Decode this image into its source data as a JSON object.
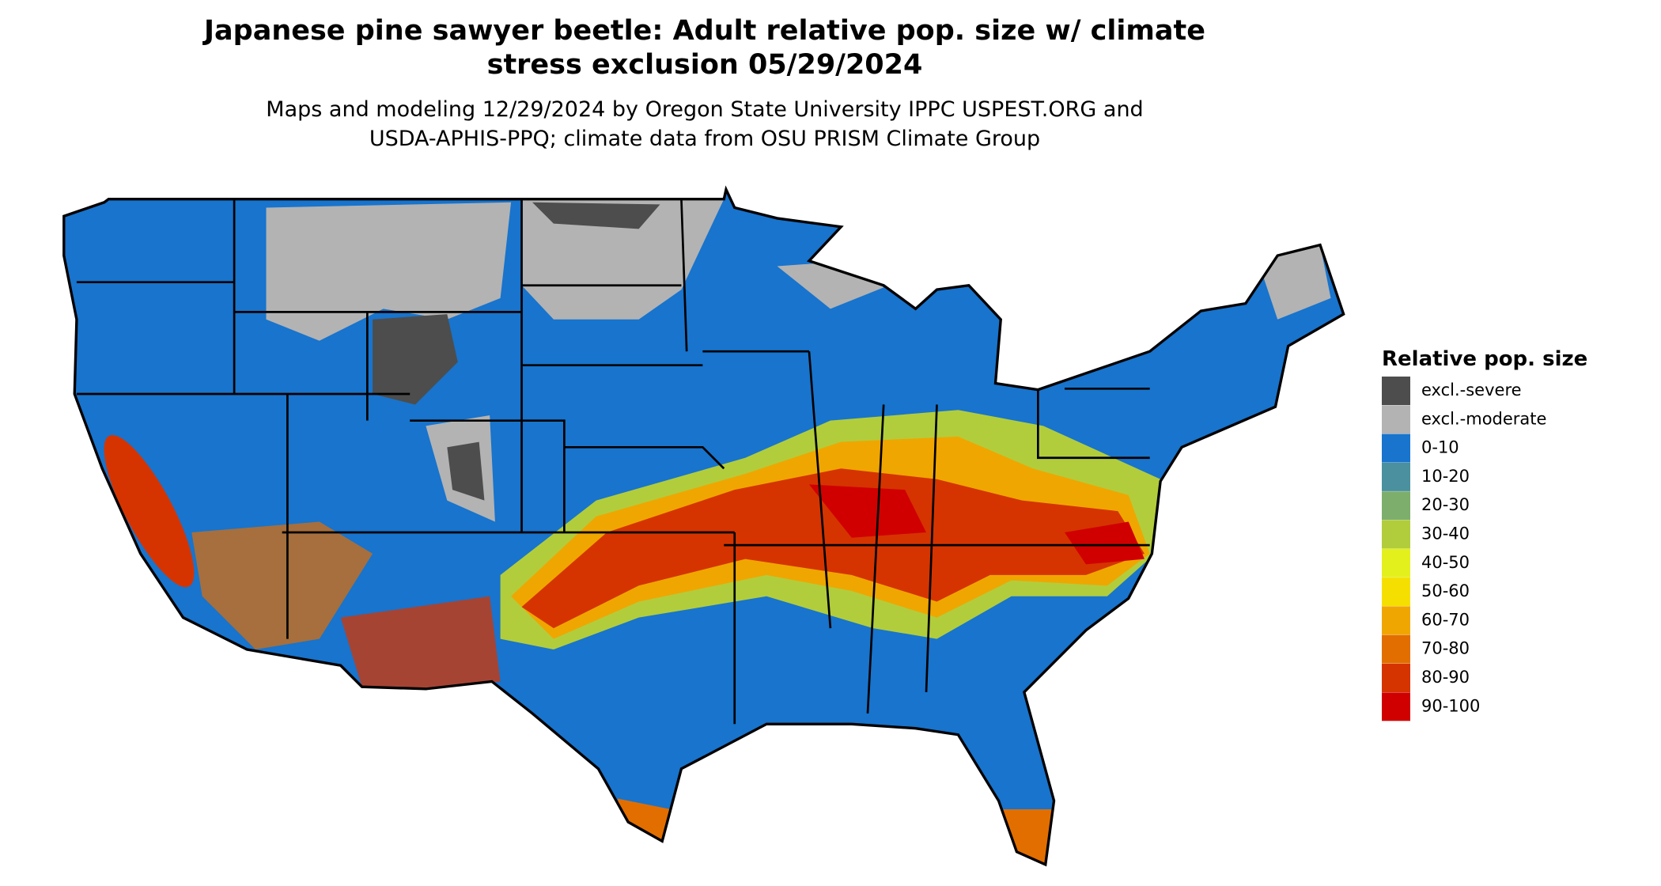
{
  "header": {
    "title_line1": "Japanese pine sawyer beetle: Adult relative pop. size w/ climate",
    "title_line2": "stress exclusion 05/29/2024",
    "subtitle_line1": "Maps and modeling 12/29/2024 by Oregon State University IPPC USPEST.ORG and",
    "subtitle_line2": "USDA-APHIS-PPQ; climate data from OSU PRISM Climate Group"
  },
  "legend": {
    "title": "Relative pop. size",
    "items": [
      {
        "label": "excl.-severe",
        "color": "#4d4d4d"
      },
      {
        "label": "excl.-moderate",
        "color": "#b3b3b3"
      },
      {
        "label": "0-10",
        "color": "#1874cd"
      },
      {
        "label": "10-20",
        "color": "#4a909e"
      },
      {
        "label": "20-30",
        "color": "#7dae6c"
      },
      {
        "label": "30-40",
        "color": "#b2cd3b"
      },
      {
        "label": "40-50",
        "color": "#e3f01c"
      },
      {
        "label": "50-60",
        "color": "#f5df00"
      },
      {
        "label": "60-70",
        "color": "#f0a600"
      },
      {
        "label": "70-80",
        "color": "#e26e00"
      },
      {
        "label": "80-90",
        "color": "#d53400"
      },
      {
        "label": "90-100",
        "color": "#d00000"
      }
    ]
  }
}
